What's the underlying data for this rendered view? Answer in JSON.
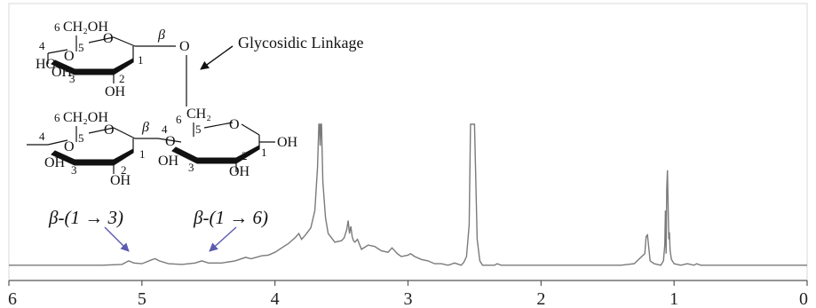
{
  "chart_data": {
    "type": "line",
    "x_axis": {
      "range": [
        6,
        0
      ],
      "ticks": [
        6,
        5,
        4,
        3,
        2,
        1,
        0
      ],
      "tick_labels": [
        "6",
        "5",
        "4",
        "3",
        "2",
        "1",
        "0"
      ],
      "reversed": true
    },
    "y_axis": {
      "visible": false
    },
    "grid": false,
    "series": [
      {
        "x": [
          6.0,
          5.6,
          5.3,
          5.15,
          5.1,
          5.06,
          5.0,
          4.92,
          4.9,
          4.87,
          4.8,
          4.7,
          4.6,
          4.55,
          4.5,
          4.4,
          4.3,
          4.22,
          4.18,
          4.1,
          4.05,
          4.0,
          3.95,
          3.9,
          3.85,
          3.82,
          3.8,
          3.77,
          3.73,
          3.7,
          3.68,
          3.67,
          3.665,
          3.66,
          3.655,
          3.65,
          3.64,
          3.62,
          3.6,
          3.55,
          3.5,
          3.48,
          3.46,
          3.45,
          3.44,
          3.43,
          3.42,
          3.41,
          3.4,
          3.38,
          3.35,
          3.3,
          3.25,
          3.2,
          3.15,
          3.12,
          3.08,
          3.05,
          3.0,
          2.98,
          2.95,
          2.9,
          2.85,
          2.8,
          2.75,
          2.7,
          2.68,
          2.65,
          2.6,
          2.58,
          2.56,
          2.54,
          2.53,
          2.52,
          2.51,
          2.5,
          2.49,
          2.48,
          2.46,
          2.44,
          2.4,
          2.35,
          2.33,
          2.3,
          2.2,
          2.0,
          1.8,
          1.6,
          1.4,
          1.3,
          1.22,
          1.21,
          1.2,
          1.19,
          1.18,
          1.15,
          1.1,
          1.08,
          1.07,
          1.065,
          1.06,
          1.055,
          1.05,
          1.045,
          1.04,
          1.035,
          1.03,
          1.02,
          1.0,
          0.95,
          0.9,
          0.85,
          0.83,
          0.8,
          0.7,
          0.5,
          0.3,
          0.0
        ],
        "y": [
          0.02,
          0.02,
          0.02,
          0.025,
          0.05,
          0.035,
          0.03,
          0.06,
          0.065,
          0.05,
          0.03,
          0.025,
          0.035,
          0.05,
          0.035,
          0.035,
          0.05,
          0.075,
          0.065,
          0.085,
          0.09,
          0.11,
          0.14,
          0.17,
          0.21,
          0.24,
          0.2,
          0.23,
          0.28,
          0.4,
          0.7,
          1.0,
          1.0,
          0.85,
          1.0,
          1.0,
          0.6,
          0.35,
          0.24,
          0.18,
          0.19,
          0.21,
          0.27,
          0.33,
          0.24,
          0.29,
          0.22,
          0.19,
          0.18,
          0.2,
          0.13,
          0.16,
          0.15,
          0.12,
          0.11,
          0.14,
          0.1,
          0.08,
          0.09,
          0.1,
          0.08,
          0.06,
          0.05,
          0.03,
          0.03,
          0.02,
          0.025,
          0.035,
          0.02,
          0.04,
          0.08,
          0.3,
          1.0,
          1.0,
          1.0,
          1.0,
          0.6,
          0.2,
          0.05,
          0.02,
          0.02,
          0.02,
          0.03,
          0.02,
          0.02,
          0.02,
          0.02,
          0.02,
          0.02,
          0.03,
          0.1,
          0.22,
          0.23,
          0.14,
          0.05,
          0.03,
          0.02,
          0.05,
          0.16,
          0.4,
          0.1,
          0.55,
          0.68,
          0.45,
          0.2,
          0.25,
          0.12,
          0.06,
          0.03,
          0.02,
          0.03,
          0.02,
          0.03,
          0.02,
          0.02,
          0.02,
          0.02,
          0.02
        ]
      }
    ],
    "annotations": [
      {
        "text": "β-(1 → 3)",
        "x": 5.1
      },
      {
        "text": "β-(1 → 6)",
        "x": 4.55
      }
    ],
    "inset_structure": {
      "linkage_label": "Glycosidic Linkage",
      "beta_label": "β",
      "residue_top": {
        "ch2oh": "CH₂OH",
        "positions": [
          "6",
          "5",
          "4",
          "3",
          "2",
          "1"
        ],
        "hydroxyls": [
          "HO",
          "OH",
          "OH"
        ],
        "ring_oxygen": "O"
      },
      "residue_bottom_left": {
        "ch2oh": "CH₂OH",
        "positions": [
          "6",
          "5",
          "4",
          "3",
          "2",
          "1"
        ],
        "hydroxyls": [
          "OH",
          "OH"
        ],
        "ring_oxygen": "O"
      },
      "residue_bottom_right": {
        "ch2": "CH₂",
        "positions": [
          "6",
          "5",
          "4",
          "3",
          "2",
          "1"
        ],
        "hydroxyls": [
          "OH",
          "OH",
          "OH"
        ],
        "ring_oxygen": "O"
      },
      "bridge_oxygen": "O"
    }
  },
  "colors": {
    "spectrum_line": "#7a7a7a",
    "axis": "#555555",
    "arrow_annotation": "#5b5bb0",
    "structure": "#111111"
  }
}
